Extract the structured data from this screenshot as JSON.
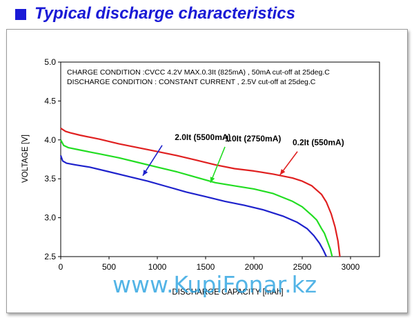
{
  "header": {
    "title": "Typical discharge characteristics",
    "square_color": "#1a1ad6"
  },
  "watermark": "www.KupiFonar.kz",
  "chart_data": {
    "type": "line",
    "title": "",
    "xlabel": "DISCHARGE CAPACITY  [mAh]",
    "ylabel": "VOLTAGE  [V]",
    "xlim": [
      0,
      3300
    ],
    "ylim": [
      2.5,
      5.0
    ],
    "xticks": [
      "0",
      "500",
      "1000",
      "1500",
      "2000",
      "2500",
      "3000"
    ],
    "yticks": [
      "2.5",
      "3.0",
      "3.5",
      "4.0",
      "4.5",
      "5.0"
    ],
    "grid": false,
    "conditions": [
      "CHARGE CONDITION :CVCC 4.2V MAX.0.3It (825mA) , 50mA cut-off at  25deg.C",
      "DISCHARGE CONDITION : CONSTANT CURRENT , 2.5V cut-off at  25deg.C"
    ],
    "series": [
      {
        "name": "0.2It (550mA)",
        "color": "#e02020",
        "x": [
          0,
          50,
          100,
          200,
          400,
          600,
          800,
          1000,
          1200,
          1400,
          1600,
          1800,
          2000,
          2200,
          2400,
          2500,
          2600,
          2700,
          2750,
          2800,
          2840,
          2870,
          2890
        ],
        "y": [
          4.15,
          4.11,
          4.09,
          4.06,
          4.01,
          3.95,
          3.9,
          3.85,
          3.8,
          3.74,
          3.68,
          3.63,
          3.6,
          3.56,
          3.51,
          3.47,
          3.41,
          3.3,
          3.2,
          3.05,
          2.88,
          2.7,
          2.5
        ]
      },
      {
        "name": "1.0It (2750mA)",
        "color": "#22dd22",
        "x": [
          0,
          30,
          80,
          200,
          400,
          600,
          800,
          1000,
          1200,
          1400,
          1600,
          1800,
          2000,
          2200,
          2400,
          2500,
          2600,
          2650,
          2700,
          2730,
          2760,
          2790,
          2810
        ],
        "y": [
          4.0,
          3.93,
          3.9,
          3.87,
          3.82,
          3.77,
          3.71,
          3.65,
          3.59,
          3.52,
          3.45,
          3.41,
          3.37,
          3.31,
          3.21,
          3.14,
          3.03,
          2.97,
          2.86,
          2.8,
          2.7,
          2.6,
          2.5
        ]
      },
      {
        "name": "2.0It (5500mA)",
        "color": "#1e22cc",
        "x": [
          0,
          20,
          60,
          150,
          300,
          500,
          700,
          900,
          1100,
          1300,
          1500,
          1700,
          1900,
          2100,
          2300,
          2450,
          2550,
          2620,
          2680,
          2720,
          2750
        ],
        "y": [
          3.8,
          3.73,
          3.7,
          3.68,
          3.65,
          3.59,
          3.53,
          3.47,
          3.4,
          3.33,
          3.27,
          3.21,
          3.16,
          3.1,
          3.02,
          2.94,
          2.86,
          2.77,
          2.67,
          2.58,
          2.5
        ]
      }
    ],
    "annotations": [
      {
        "text": "2.0It (5500mA)",
        "color": "#1e22cc",
        "label_at": [
          1180,
          4.0
        ],
        "arrow_from": [
          1050,
          3.93
        ],
        "arrow_to": [
          850,
          3.54
        ]
      },
      {
        "text": "1.0It (2750mA)",
        "color": "#22dd22",
        "label_at": [
          1700,
          3.98
        ],
        "arrow_from": [
          1700,
          3.91
        ],
        "arrow_to": [
          1550,
          3.45
        ]
      },
      {
        "text": "0.2It (550mA)",
        "color": "#e02020",
        "label_at": [
          2400,
          3.93
        ],
        "arrow_from": [
          2450,
          3.85
        ],
        "arrow_to": [
          2270,
          3.55
        ]
      }
    ]
  }
}
